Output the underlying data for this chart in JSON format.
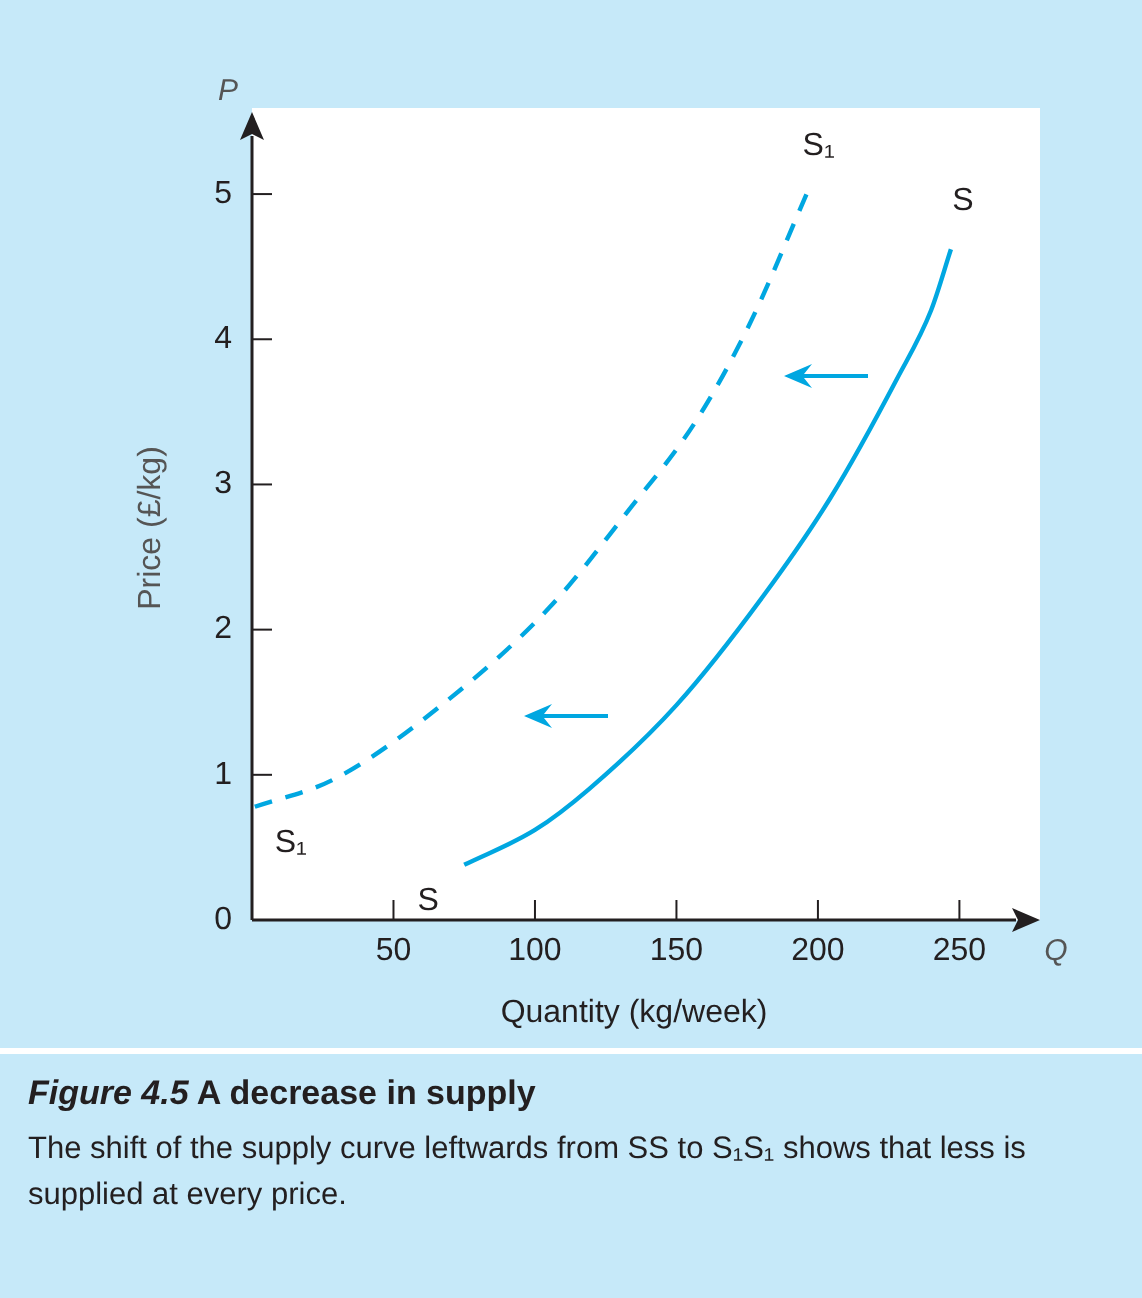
{
  "chart_data": {
    "type": "line",
    "title": "Figure 4.5  A decrease in supply",
    "subtitle": "The shift of the supply curve leftwards from SS to S₁S₁ shows that less is supplied at every price.",
    "xlabel": "Quantity (kg/week)",
    "ylabel": "Price (£/kg)",
    "xlim": [
      0,
      270
    ],
    "ylim": [
      0,
      5.4
    ],
    "xticks": [
      50,
      100,
      150,
      200,
      250
    ],
    "yticks": [
      0,
      1,
      2,
      3,
      4,
      5
    ],
    "grid": false,
    "legend": false,
    "marker": "none",
    "series": [
      {
        "name": "S",
        "color": "#00a7e1",
        "line_style": "solid",
        "x": [
          75,
          100,
          119,
          150,
          181,
          204.5,
          228,
          240,
          247
        ],
        "values": [
          0.38,
          0.62,
          0.9,
          1.48,
          2.24,
          2.91,
          3.73,
          4.2,
          4.62
        ]
      },
      {
        "name": "S₁",
        "color": "#00a7e1",
        "line_style": "dashed",
        "x": [
          1,
          29,
          67,
          105,
          133,
          157,
          176,
          196
        ],
        "values": [
          0.78,
          0.97,
          1.48,
          2.15,
          2.82,
          3.44,
          4.11,
          5.0
        ]
      }
    ],
    "annotations": [
      "P",
      "Q"
    ]
  }
}
